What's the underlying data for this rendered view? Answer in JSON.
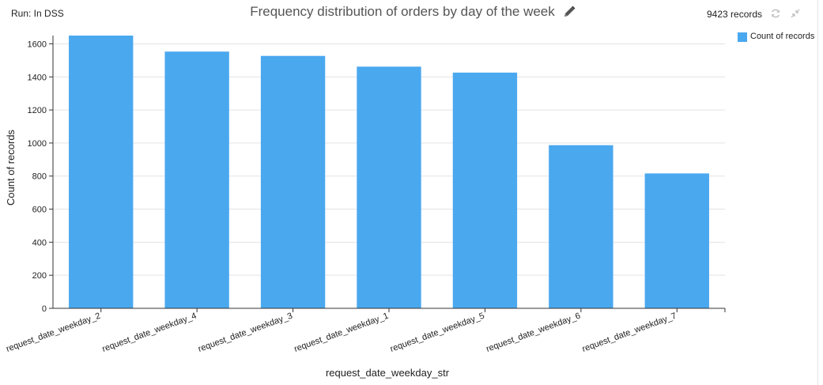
{
  "header": {
    "run_label": "Run: In DSS",
    "title": "Frequency distribution of orders by day of the week",
    "records": "9423 records"
  },
  "icons": {
    "edit": "pencil-icon",
    "refresh": "refresh-icon",
    "collapse": "collapse-icon"
  },
  "legend": {
    "label": "Count of records",
    "color": "#4aa8ef"
  },
  "chart_data": {
    "type": "bar",
    "categories": [
      "request_date_weekday_2",
      "request_date_weekday_4",
      "request_date_weekday_3",
      "request_date_weekday_1",
      "request_date_weekday_5",
      "request_date_weekday_6",
      "request_date_weekday_7"
    ],
    "series": [
      {
        "name": "Count of records",
        "values": [
          1652,
          1553,
          1527,
          1462,
          1426,
          987,
          816
        ]
      }
    ],
    "title": "Frequency distribution of orders by day of the week",
    "xlabel": "request_date_weekday_str",
    "ylabel": "Count of records",
    "ylim": [
      0,
      1650
    ],
    "yticks": [
      0,
      200,
      400,
      600,
      800,
      1000,
      1200,
      1400,
      1600
    ],
    "grid": true,
    "legend_position": "top-right",
    "bar_color": "#4aa8ef"
  }
}
